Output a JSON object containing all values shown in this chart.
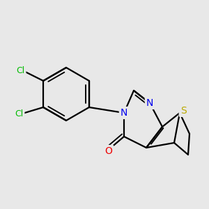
{
  "background_color": "#e8e8e8",
  "atom_colors": {
    "C": "#000000",
    "N": "#0000ee",
    "O": "#ee0000",
    "S": "#bbaa00",
    "Cl": "#00bb00"
  },
  "bond_color": "#000000",
  "bond_width": 1.6,
  "font_size": 10,
  "figsize": [
    3.0,
    3.0
  ],
  "dpi": 100
}
